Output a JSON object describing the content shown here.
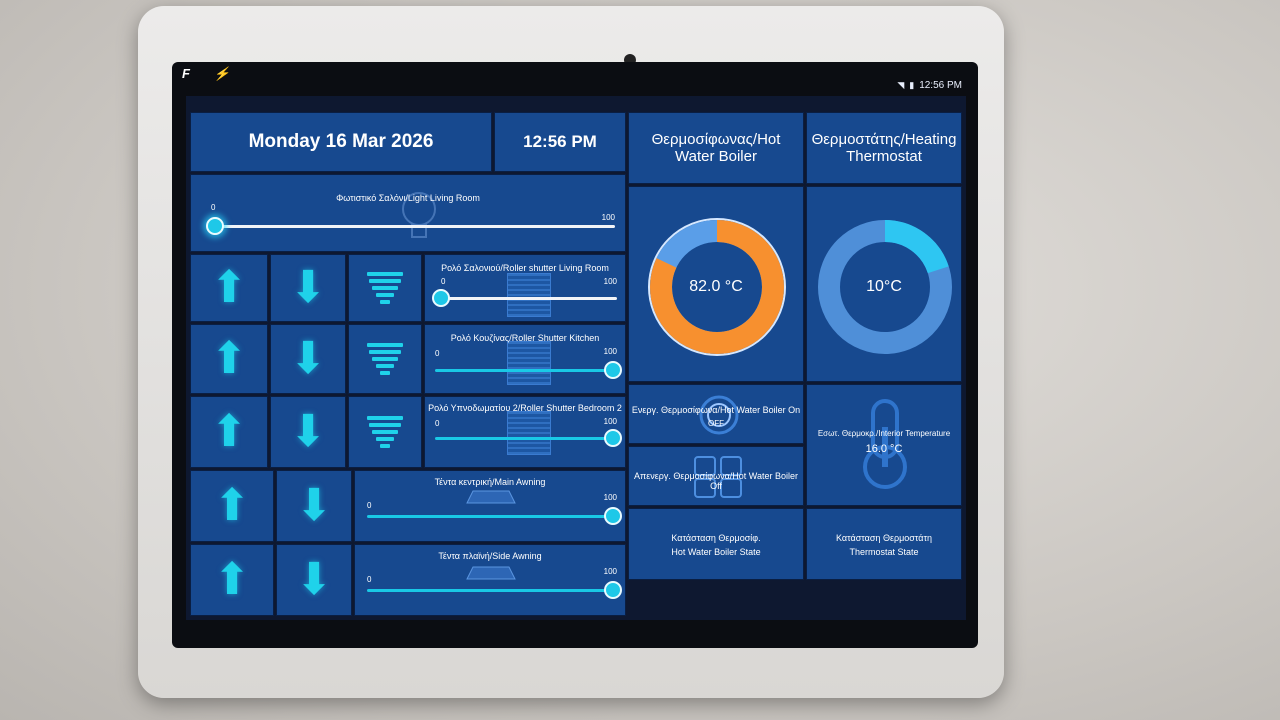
{
  "header": {
    "date": "Monday 16 Mar 2026",
    "time": "12:56 PM"
  },
  "status_bar": {
    "time": "12:56 PM",
    "icons": [
      "wifi-icon",
      "battery-icon"
    ]
  },
  "notifications": {
    "text": "F ⚡"
  },
  "light": {
    "label": "Φωτιστικό Σαλόνι/Light Living Room",
    "min": "0",
    "max": "100",
    "value": 0
  },
  "shutters": [
    {
      "label": "Ρολό Σαλονιού/Roller shutter Living Room",
      "min": "0",
      "max": "100",
      "value": 0
    },
    {
      "label": "Ρολό Κουζίνας/Roller Shutter Kitchen",
      "min": "0",
      "max": "100",
      "value": 100
    },
    {
      "label": "Ρολό Υπνοδωματίου 2/Roller Shutter Bedroom 2",
      "min": "0",
      "max": "100",
      "value": 100
    }
  ],
  "awnings": [
    {
      "label": "Τέντα κεντρική/Main Awning",
      "min": "0",
      "max": "100",
      "value": 100
    },
    {
      "label": "Τέντα πλαϊνή/Side Awning",
      "min": "0",
      "max": "100",
      "value": 100
    }
  ],
  "boiler": {
    "title": "Θερμοσίφωνας/Hot Water Boiler",
    "temperature": "82.0 °C",
    "gauge_fraction": 0.82,
    "on_label": "Ενεργ. Θερμοσίφωνα/Hot Water Boiler On",
    "on_badge": "OFF",
    "off_label": "Απενεργ. Θερμοσίφωνα/Hot Water Boiler Off",
    "state_label_1": "Κατάσταση Θερμοσίφ.",
    "state_label_2": "Hot Water Boiler State"
  },
  "thermostat": {
    "title": "Θερμοστάτης/Heating Thermostat",
    "temperature": "10°C",
    "gauge_fraction": 0.2,
    "interior_label": "Εσωτ. Θερμοκρ./Interior Temperature",
    "interior_value": "16.0 °C",
    "state_label_1": "Κατάσταση Θερμοστάτη",
    "state_label_2": "Thermostat State"
  },
  "colors": {
    "tile": "#17498f",
    "accent": "#1fd2ea",
    "boiler": "#f7902f"
  }
}
